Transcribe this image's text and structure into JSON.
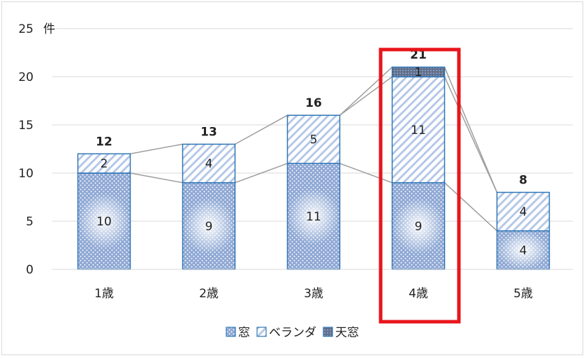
{
  "chart_data": {
    "type": "bar",
    "stacked": true,
    "categories": [
      "1歳",
      "2歳",
      "3歳",
      "4歳",
      "5歳"
    ],
    "series": [
      {
        "name": "窓",
        "values": [
          10,
          9,
          11,
          9,
          4
        ],
        "color": "#9db3d6",
        "pattern": "dots"
      },
      {
        "name": "ベランダ",
        "values": [
          2,
          4,
          5,
          11,
          4
        ],
        "color": "#c9d8ef",
        "pattern": "diagonal"
      },
      {
        "name": "天窓",
        "values": [
          0,
          0,
          0,
          1,
          0
        ],
        "color": "#6f7f99",
        "pattern": "grid"
      }
    ],
    "totals": [
      12,
      13,
      16,
      21,
      8
    ],
    "ylim": [
      0,
      25
    ],
    "yticks": [
      0,
      5,
      10,
      15,
      20,
      25
    ],
    "y_unit": "件",
    "grid": true,
    "legend_position": "bottom",
    "highlight_category": "4歳",
    "highlight_color": "#e8141b",
    "series_lines": true
  }
}
